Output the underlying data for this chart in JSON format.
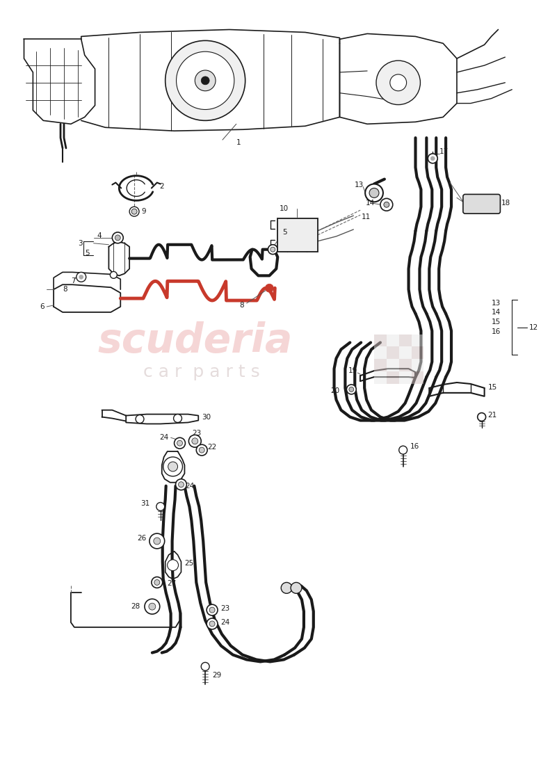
{
  "bg_color": "#ffffff",
  "line_color": "#1a1a1a",
  "red_line_color": "#c8392b",
  "wm_color1": "#f0c0c0",
  "wm_color2": "#d0c0c0",
  "lw_pipe": 3.5,
  "lw_thin": 1.0,
  "lw_med": 1.5,
  "label_fs": 7.5,
  "label_color": "#1a1a1a"
}
